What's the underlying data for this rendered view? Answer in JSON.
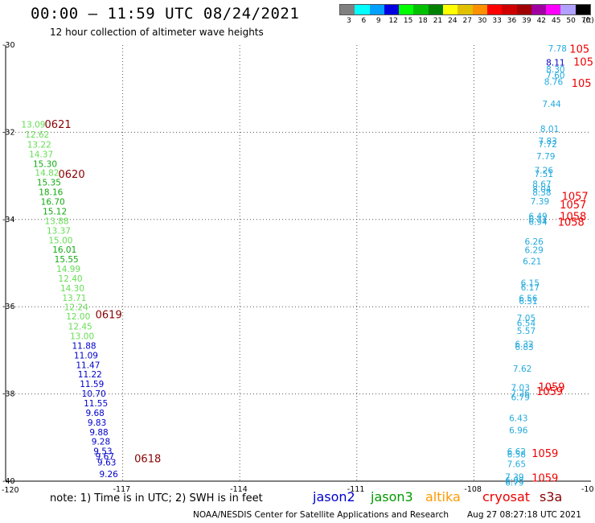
{
  "header": {
    "title": "00:00 – 11:59 UTC 08/24/2021",
    "subtitle": "12 hour collection of altimeter wave heights"
  },
  "color_scale": {
    "unit": "(ft)",
    "bins": [
      {
        "label": "3",
        "color": "#808080"
      },
      {
        "label": "6",
        "color": "#00ffff"
      },
      {
        "label": "9",
        "color": "#00a0ff"
      },
      {
        "label": "12",
        "color": "#0000e0"
      },
      {
        "label": "15",
        "color": "#00ff00"
      },
      {
        "label": "18",
        "color": "#00c000"
      },
      {
        "label": "21",
        "color": "#008000"
      },
      {
        "label": "24",
        "color": "#ffff00"
      },
      {
        "label": "27",
        "color": "#e0c000"
      },
      {
        "label": "30",
        "color": "#ff9000"
      },
      {
        "label": "33",
        "color": "#ff0000"
      },
      {
        "label": "36",
        "color": "#d00000"
      },
      {
        "label": "39",
        "color": "#a00000"
      },
      {
        "label": "42",
        "color": "#a000a0"
      },
      {
        "label": "45",
        "color": "#ff00ff"
      },
      {
        "label": "50",
        "color": "#b0a0ff"
      },
      {
        "label": "70",
        "color": "#000000"
      }
    ]
  },
  "map": {
    "lon_range": [
      -120,
      -105
    ],
    "lat_range": [
      -40,
      -30
    ],
    "lon_ticks": [
      {
        "lon": -120,
        "label": "-120"
      },
      {
        "lon": -117,
        "label": "-117"
      },
      {
        "lon": -114,
        "label": "-114"
      },
      {
        "lon": -111,
        "label": "-111"
      },
      {
        "lon": -108,
        "label": "-108"
      },
      {
        "lon": -105,
        "label": "-10"
      }
    ],
    "lat_ticks": [
      {
        "lat": -30,
        "label": "-30"
      },
      {
        "lat": -32,
        "label": "-32"
      },
      {
        "lat": -34,
        "label": "-34"
      },
      {
        "lat": -36,
        "label": "-36"
      },
      {
        "lat": -38,
        "label": "-38"
      },
      {
        "lat": -40,
        "label": "-40"
      }
    ],
    "grid": true
  },
  "colors": {
    "lightgreen": "#66dd55",
    "green": "#11aa11",
    "blue": "#0000cc",
    "cyan": "#22aadd",
    "red": "#ee0000",
    "darkred": "#880000"
  },
  "measurements": [
    {
      "lon": -119.6,
      "lat": -31.82,
      "value": "13.09",
      "color": "lightgreen"
    },
    {
      "lon": -119.5,
      "lat": -32.05,
      "value": "12.62",
      "color": "lightgreen"
    },
    {
      "lon": -119.45,
      "lat": -32.28,
      "value": "13.22",
      "color": "lightgreen"
    },
    {
      "lon": -119.4,
      "lat": -32.5,
      "value": "14.37",
      "color": "lightgreen"
    },
    {
      "lon": -119.3,
      "lat": -32.72,
      "value": "15.30",
      "color": "green"
    },
    {
      "lon": -119.25,
      "lat": -32.92,
      "value": "14.82",
      "color": "lightgreen"
    },
    {
      "lon": -119.2,
      "lat": -33.15,
      "value": "15.35",
      "color": "green"
    },
    {
      "lon": -119.15,
      "lat": -33.37,
      "value": "18.16",
      "color": "green"
    },
    {
      "lon": -119.1,
      "lat": -33.59,
      "value": "16.70",
      "color": "green"
    },
    {
      "lon": -119.05,
      "lat": -33.81,
      "value": "15.12",
      "color": "green"
    },
    {
      "lon": -119.0,
      "lat": -34.03,
      "value": "13.88",
      "color": "lightgreen"
    },
    {
      "lon": -118.95,
      "lat": -34.25,
      "value": "13.37",
      "color": "lightgreen"
    },
    {
      "lon": -118.9,
      "lat": -34.47,
      "value": "15.00",
      "color": "lightgreen"
    },
    {
      "lon": -118.8,
      "lat": -34.69,
      "value": "16.01",
      "color": "green"
    },
    {
      "lon": -118.75,
      "lat": -34.91,
      "value": "15.55",
      "color": "green"
    },
    {
      "lon": -118.7,
      "lat": -35.13,
      "value": "14.99",
      "color": "lightgreen"
    },
    {
      "lon": -118.65,
      "lat": -35.35,
      "value": "12.40",
      "color": "lightgreen"
    },
    {
      "lon": -118.6,
      "lat": -35.57,
      "value": "14.30",
      "color": "lightgreen"
    },
    {
      "lon": -118.55,
      "lat": -35.79,
      "value": "13.71",
      "color": "lightgreen"
    },
    {
      "lon": -118.5,
      "lat": -36.01,
      "value": "12.24",
      "color": "lightgreen"
    },
    {
      "lon": -118.45,
      "lat": -36.22,
      "value": "12.00",
      "color": "lightgreen"
    },
    {
      "lon": -118.4,
      "lat": -36.45,
      "value": "12.45",
      "color": "lightgreen"
    },
    {
      "lon": -118.35,
      "lat": -36.67,
      "value": "13.00",
      "color": "lightgreen"
    },
    {
      "lon": -118.3,
      "lat": -36.89,
      "value": "11.88",
      "color": "blue"
    },
    {
      "lon": -118.25,
      "lat": -37.11,
      "value": "11.09",
      "color": "blue"
    },
    {
      "lon": -118.2,
      "lat": -37.33,
      "value": "11.47",
      "color": "blue"
    },
    {
      "lon": -118.15,
      "lat": -37.55,
      "value": "11.22",
      "color": "blue"
    },
    {
      "lon": -118.1,
      "lat": -37.77,
      "value": "11.59",
      "color": "blue"
    },
    {
      "lon": -118.05,
      "lat": -37.99,
      "value": "10.70",
      "color": "blue"
    },
    {
      "lon": -118.0,
      "lat": -38.21,
      "value": "11.55",
      "color": "blue"
    },
    {
      "lon": -117.95,
      "lat": -38.43,
      "value": "9.68",
      "color": "blue"
    },
    {
      "lon": -117.9,
      "lat": -38.65,
      "value": "9.83",
      "color": "blue"
    },
    {
      "lon": -117.85,
      "lat": -38.87,
      "value": "9.88",
      "color": "blue"
    },
    {
      "lon": -117.8,
      "lat": -39.09,
      "value": "9.28",
      "color": "blue"
    },
    {
      "lon": -117.75,
      "lat": -39.31,
      "value": "9.53",
      "color": "blue"
    },
    {
      "lon": -117.7,
      "lat": -39.43,
      "value": "9.67",
      "color": "blue"
    },
    {
      "lon": -117.65,
      "lat": -39.57,
      "value": "9.63",
      "color": "blue"
    },
    {
      "lon": -117.6,
      "lat": -39.83,
      "value": "9.26",
      "color": "blue"
    },
    {
      "lon": -106.1,
      "lat": -30.07,
      "value": "7.78",
      "color": "cyan"
    },
    {
      "lon": -106.15,
      "lat": -30.4,
      "value": "8.11",
      "color": "blue"
    },
    {
      "lon": -106.15,
      "lat": -30.55,
      "value": "8.30",
      "color": "cyan"
    },
    {
      "lon": -106.15,
      "lat": -30.69,
      "value": "7.60",
      "color": "cyan"
    },
    {
      "lon": -106.2,
      "lat": -30.84,
      "value": "8.76",
      "color": "cyan"
    },
    {
      "lon": -106.25,
      "lat": -31.35,
      "value": "7.44",
      "color": "cyan"
    },
    {
      "lon": -106.3,
      "lat": -31.92,
      "value": "8.01",
      "color": "cyan"
    },
    {
      "lon": -106.35,
      "lat": -32.2,
      "value": "7.83",
      "color": "cyan"
    },
    {
      "lon": -106.35,
      "lat": -32.27,
      "value": "7.72",
      "color": "cyan"
    },
    {
      "lon": -106.4,
      "lat": -32.55,
      "value": "7.79",
      "color": "cyan"
    },
    {
      "lon": -106.45,
      "lat": -32.87,
      "value": "7.26",
      "color": "cyan"
    },
    {
      "lon": -106.45,
      "lat": -32.95,
      "value": "7.51",
      "color": "cyan"
    },
    {
      "lon": -106.5,
      "lat": -33.18,
      "value": "8.67",
      "color": "cyan"
    },
    {
      "lon": -106.5,
      "lat": -33.3,
      "value": "8.04",
      "color": "cyan"
    },
    {
      "lon": -106.5,
      "lat": -33.38,
      "value": "8.38",
      "color": "cyan"
    },
    {
      "lon": -106.55,
      "lat": -33.58,
      "value": "7.39",
      "color": "cyan"
    },
    {
      "lon": -106.6,
      "lat": -33.92,
      "value": "6.49",
      "color": "cyan"
    },
    {
      "lon": -106.6,
      "lat": -33.99,
      "value": "6.71",
      "color": "cyan"
    },
    {
      "lon": -106.6,
      "lat": -34.05,
      "value": "6.94",
      "color": "cyan"
    },
    {
      "lon": -106.7,
      "lat": -34.5,
      "value": "6.26",
      "color": "cyan"
    },
    {
      "lon": -106.7,
      "lat": -34.7,
      "value": "6.29",
      "color": "cyan"
    },
    {
      "lon": -106.75,
      "lat": -34.95,
      "value": "6.21",
      "color": "cyan"
    },
    {
      "lon": -106.8,
      "lat": -35.45,
      "value": "6.15",
      "color": "cyan"
    },
    {
      "lon": -106.8,
      "lat": -35.55,
      "value": "6.17",
      "color": "cyan"
    },
    {
      "lon": -106.85,
      "lat": -35.8,
      "value": "6.56",
      "color": "cyan"
    },
    {
      "lon": -106.85,
      "lat": -35.87,
      "value": "6.51",
      "color": "cyan"
    },
    {
      "lon": -106.9,
      "lat": -36.25,
      "value": "7.05",
      "color": "cyan"
    },
    {
      "lon": -106.9,
      "lat": -36.37,
      "value": "6.54",
      "color": "cyan"
    },
    {
      "lon": -106.9,
      "lat": -36.55,
      "value": "5.57",
      "color": "cyan"
    },
    {
      "lon": -106.95,
      "lat": -36.85,
      "value": "6.32",
      "color": "cyan"
    },
    {
      "lon": -106.95,
      "lat": -36.92,
      "value": "6.83",
      "color": "cyan"
    },
    {
      "lon": -107.0,
      "lat": -37.42,
      "value": "7.62",
      "color": "cyan"
    },
    {
      "lon": -107.05,
      "lat": -37.85,
      "value": "7.03",
      "color": "cyan"
    },
    {
      "lon": -107.05,
      "lat": -37.98,
      "value": "7.26",
      "color": "cyan"
    },
    {
      "lon": -107.05,
      "lat": -38.07,
      "value": "6.79",
      "color": "cyan"
    },
    {
      "lon": -107.1,
      "lat": -38.55,
      "value": "6.43",
      "color": "cyan"
    },
    {
      "lon": -107.1,
      "lat": -38.83,
      "value": "6.96",
      "color": "cyan"
    },
    {
      "lon": -107.15,
      "lat": -39.32,
      "value": "6.62",
      "color": "cyan"
    },
    {
      "lon": -107.15,
      "lat": -39.38,
      "value": "6.58",
      "color": "cyan"
    },
    {
      "lon": -107.15,
      "lat": -39.6,
      "value": "7.65",
      "color": "cyan"
    },
    {
      "lon": -107.2,
      "lat": -39.9,
      "value": "7.39",
      "color": "cyan"
    },
    {
      "lon": -107.2,
      "lat": -39.98,
      "value": "6.98",
      "color": "cyan"
    },
    {
      "lon": -107.2,
      "lat": -40.03,
      "value": "6.79",
      "color": "cyan"
    }
  ],
  "pass_labels": [
    {
      "lon": -119.0,
      "lat": -31.81,
      "text": "0621",
      "color": "darkred"
    },
    {
      "lon": -118.65,
      "lat": -32.95,
      "text": "0620",
      "color": "darkred"
    },
    {
      "lon": -117.7,
      "lat": -36.17,
      "text": "0619",
      "color": "darkred"
    },
    {
      "lon": -116.7,
      "lat": -39.47,
      "text": "0618",
      "color": "darkred"
    },
    {
      "lon": -105.55,
      "lat": -30.08,
      "text": "105",
      "color": "red"
    },
    {
      "lon": -105.45,
      "lat": -30.38,
      "text": "105",
      "color": "red"
    },
    {
      "lon": -105.5,
      "lat": -30.87,
      "text": "105",
      "color": "red"
    },
    {
      "lon": -105.75,
      "lat": -33.46,
      "text": "1057",
      "color": "red"
    },
    {
      "lon": -105.8,
      "lat": -33.65,
      "text": "1057",
      "color": "red"
    },
    {
      "lon": -105.8,
      "lat": -33.92,
      "text": "1058",
      "color": "red"
    },
    {
      "lon": -105.85,
      "lat": -34.05,
      "text": "1058",
      "color": "red"
    },
    {
      "lon": -106.35,
      "lat": -37.83,
      "text": "1059",
      "color": "red"
    },
    {
      "lon": -106.4,
      "lat": -37.93,
      "text": "1059",
      "color": "red"
    },
    {
      "lon": -106.52,
      "lat": -39.35,
      "text": "1059",
      "color": "red"
    },
    {
      "lon": -106.52,
      "lat": -39.92,
      "text": "1059",
      "color": "red"
    }
  ],
  "footer": {
    "note": "note: 1) Time is in UTC; 2) SWH is in feet",
    "legend": [
      {
        "name": "jason2",
        "color": "#0000cc"
      },
      {
        "name": "jason3",
        "color": "#009900"
      },
      {
        "name": "altika",
        "color": "#ff9900"
      },
      {
        "name": "cryosat",
        "color": "#ee0000"
      },
      {
        "name": "s3a",
        "color": "#880000"
      }
    ],
    "credit": "NOAA/NESDIS Center for Satellite Applications and Research",
    "timestamp": "Aug 27 08:27:18 UTC 2021"
  }
}
